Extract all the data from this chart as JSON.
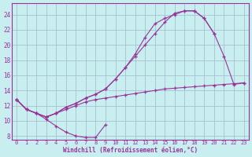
{
  "xlabel": "Windchill (Refroidissement éolien,°C)",
  "xlim": [
    -0.5,
    23.5
  ],
  "ylim": [
    7.5,
    25.5
  ],
  "xticks": [
    0,
    1,
    2,
    3,
    4,
    5,
    6,
    7,
    8,
    9,
    10,
    11,
    12,
    13,
    14,
    15,
    16,
    17,
    18,
    19,
    20,
    21,
    22,
    23
  ],
  "yticks": [
    8,
    10,
    12,
    14,
    16,
    18,
    20,
    22,
    24
  ],
  "bg_color": "#c8eef0",
  "line_color": "#993399",
  "grid_color": "#a0b8cc",
  "line1": {
    "x": [
      0,
      1,
      2,
      3,
      4,
      5,
      6,
      7,
      8,
      9
    ],
    "y": [
      12.8,
      11.5,
      11.0,
      10.2,
      9.3,
      8.5,
      8.0,
      7.8,
      7.8,
      9.5
    ]
  },
  "line2": {
    "x": [
      0,
      1,
      2,
      3,
      4,
      5,
      6,
      7,
      8,
      9,
      10,
      11,
      12,
      13,
      14,
      15,
      16,
      17,
      18,
      19,
      20,
      21,
      22,
      23
    ],
    "y": [
      12.8,
      11.5,
      11.0,
      10.5,
      11.0,
      11.5,
      12.0,
      12.5,
      12.8,
      13.0,
      13.2,
      13.4,
      13.6,
      13.8,
      14.0,
      14.2,
      14.3,
      14.4,
      14.5,
      14.6,
      14.7,
      14.8,
      14.9,
      15.0
    ]
  },
  "line3": {
    "x": [
      0,
      1,
      2,
      3,
      4,
      5,
      6,
      7,
      8,
      9,
      10,
      11,
      12,
      13,
      14,
      15,
      16,
      17,
      18,
      19,
      20,
      21,
      22,
      23
    ],
    "y": [
      12.8,
      11.5,
      11.0,
      10.5,
      11.0,
      11.8,
      12.3,
      13.0,
      13.5,
      14.2,
      15.5,
      17.0,
      18.5,
      20.0,
      21.5,
      23.0,
      24.2,
      24.5,
      24.5,
      23.5,
      21.5,
      18.5,
      14.8,
      15.0
    ]
  },
  "line4": {
    "x": [
      0,
      1,
      2,
      3,
      4,
      5,
      6,
      7,
      8,
      9,
      10,
      11,
      12,
      13,
      14,
      15,
      16,
      17,
      18,
      19,
      20
    ],
    "y": [
      12.8,
      11.5,
      11.0,
      10.5,
      11.0,
      11.8,
      12.3,
      13.0,
      13.5,
      14.2,
      15.5,
      17.0,
      18.8,
      21.0,
      22.8,
      23.5,
      24.0,
      24.5,
      24.5,
      23.5,
      21.5
    ]
  }
}
